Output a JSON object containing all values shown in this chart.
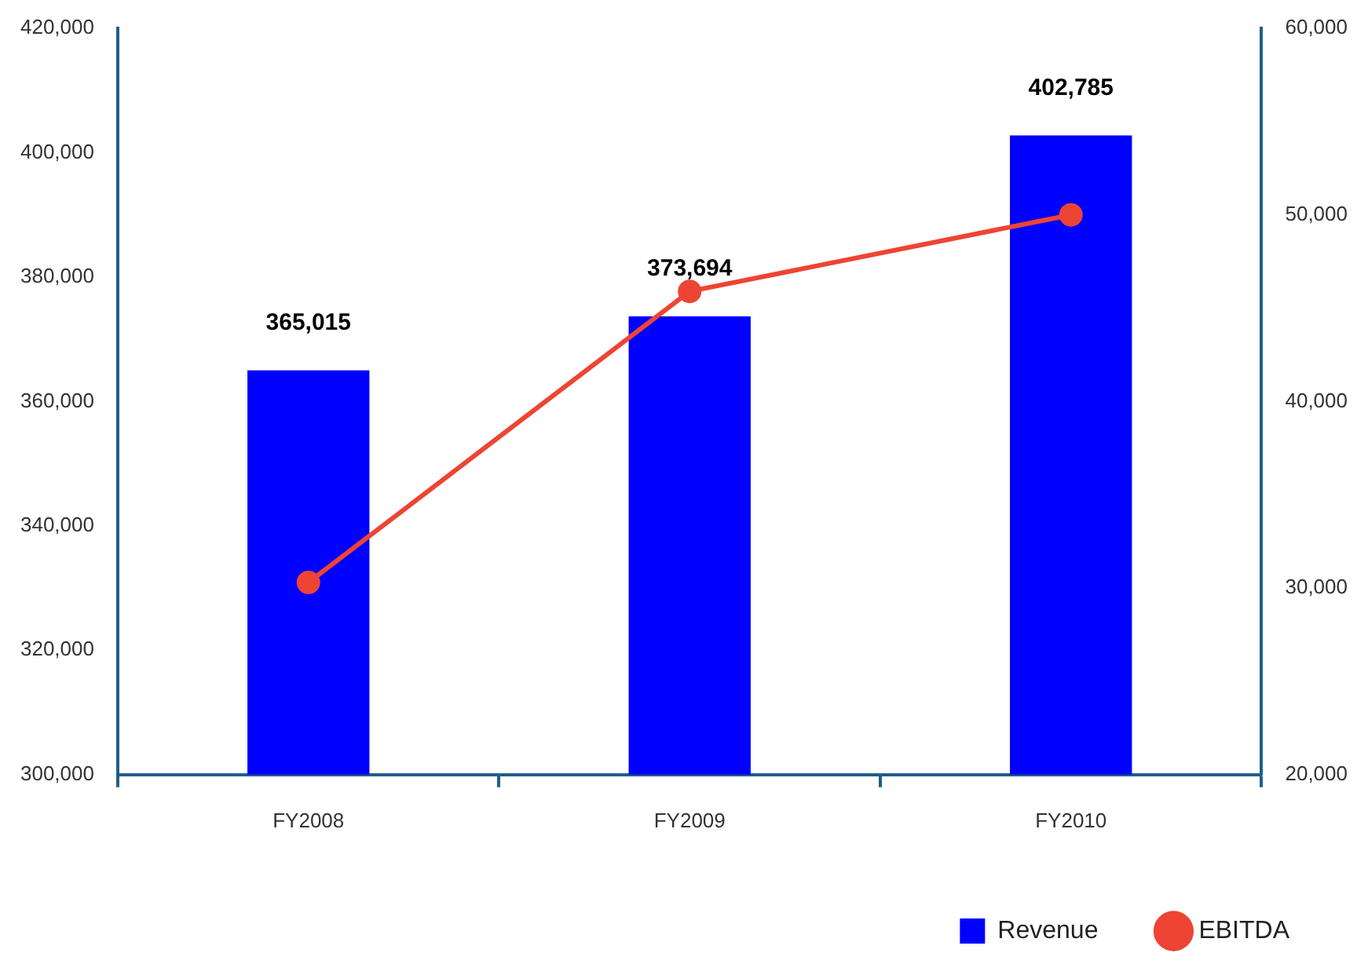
{
  "chart_data": {
    "type": "bar",
    "categories": [
      "FY2008",
      "FY2009",
      "FY2010"
    ],
    "series": [
      {
        "name": "Revenue",
        "color": "#0000ff",
        "values": [
          365015,
          373694,
          402785
        ],
        "value_labels": [
          "365,015",
          "373,694",
          "402,785"
        ]
      },
      {
        "name": "EBITDA",
        "type": "line",
        "axis": "y2",
        "color": "#ee4433",
        "values": [
          30300,
          45900,
          50000
        ]
      }
    ],
    "ylim": [
      300000,
      420000
    ],
    "yticks": [
      {
        "value": 300000,
        "label": "300,000"
      },
      {
        "value": 320000,
        "label": "320,000"
      },
      {
        "value": 340000,
        "label": "340,000"
      },
      {
        "value": 360000,
        "label": "360,000"
      },
      {
        "value": 380000,
        "label": "380,000"
      },
      {
        "value": 400000,
        "label": "400,000"
      },
      {
        "value": 420000,
        "label": "420,000"
      }
    ],
    "y2lim": [
      20000,
      60000
    ],
    "y2ticks": [
      {
        "value": 20000,
        "label": "20,000"
      },
      {
        "value": 30000,
        "label": "30,000"
      },
      {
        "value": 40000,
        "label": "40,000"
      },
      {
        "value": 50000,
        "label": "50,000"
      },
      {
        "value": 60000,
        "label": "60,000"
      }
    ],
    "grid": false,
    "legend": "bottom right",
    "marker": "circle",
    "line_style": "solid"
  }
}
